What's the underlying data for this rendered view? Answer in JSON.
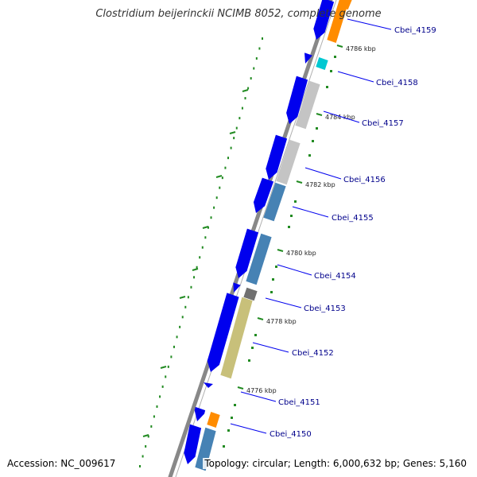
{
  "title": "Clostridium beijerinckii NCIMB 8052, complete genome",
  "footer": {
    "accession": "Accession: NC_009617",
    "summary": "Topology: circular; Length: 6,000,632 bp; Genes: 5,160"
  },
  "colors": {
    "backbone": "#888888",
    "forward_cds": "#0000ee",
    "label": "#00008b",
    "tick": "#228b22",
    "orange": "#ff8c00",
    "silver": "#c4c4c4",
    "steelblue": "#4682b4",
    "khaki": "#c8c07a",
    "darkgray": "#707070",
    "cyan": "#00c8d2"
  },
  "kbp_marks": [
    "4786 kbp",
    "4784 kbp",
    "4782 kbp",
    "4780 kbp",
    "4778 kbp",
    "4776 kbp"
  ],
  "genes": [
    {
      "id": "Cbei_4159"
    },
    {
      "id": "Cbei_4158"
    },
    {
      "id": "Cbei_4157"
    },
    {
      "id": "Cbei_4156"
    },
    {
      "id": "Cbei_4155"
    },
    {
      "id": "Cbei_4154"
    },
    {
      "id": "Cbei_4153"
    },
    {
      "id": "Cbei_4152"
    },
    {
      "id": "Cbei_4151"
    },
    {
      "id": "Cbei_4150"
    }
  ]
}
